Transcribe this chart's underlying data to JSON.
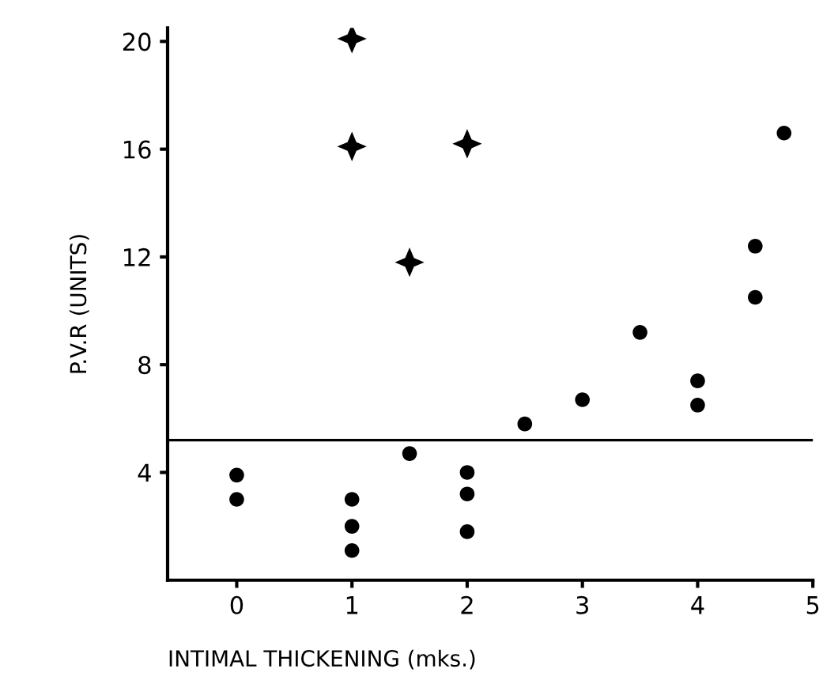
{
  "chart_data": {
    "type": "scatter",
    "xlabel": "INTIMAL THICKENING (mks.)",
    "ylabel": "P.V.R (UNITS)",
    "xlim": [
      -0.6,
      5
    ],
    "ylim": [
      0,
      20.5
    ],
    "xticks": [
      0,
      1,
      2,
      3,
      4,
      5
    ],
    "yticks": [
      4,
      8,
      12,
      16,
      20
    ],
    "grid": false,
    "series": [
      {
        "color": "#000000",
        "marker": "star",
        "x": [
          1,
          1,
          2,
          1.5
        ],
        "values": [
          20.1,
          16.1,
          16.2,
          11.8
        ]
      },
      {
        "color": "#000000",
        "marker": "circle",
        "x": [
          0,
          0,
          1,
          1,
          1,
          1.5,
          2,
          2,
          2,
          2.5,
          3,
          3.5,
          4,
          4,
          4.5,
          4.5,
          4.75
        ],
        "values": [
          3.9,
          3.0,
          3.0,
          2.0,
          1.1,
          4.7,
          4.0,
          3.2,
          1.8,
          5.8,
          6.7,
          9.2,
          7.4,
          6.5,
          10.5,
          12.4,
          16.6
        ]
      }
    ],
    "ref_lines": [
      {
        "axis": "y",
        "value": 5.2,
        "color": "#000000",
        "line_style": "solid"
      }
    ]
  }
}
